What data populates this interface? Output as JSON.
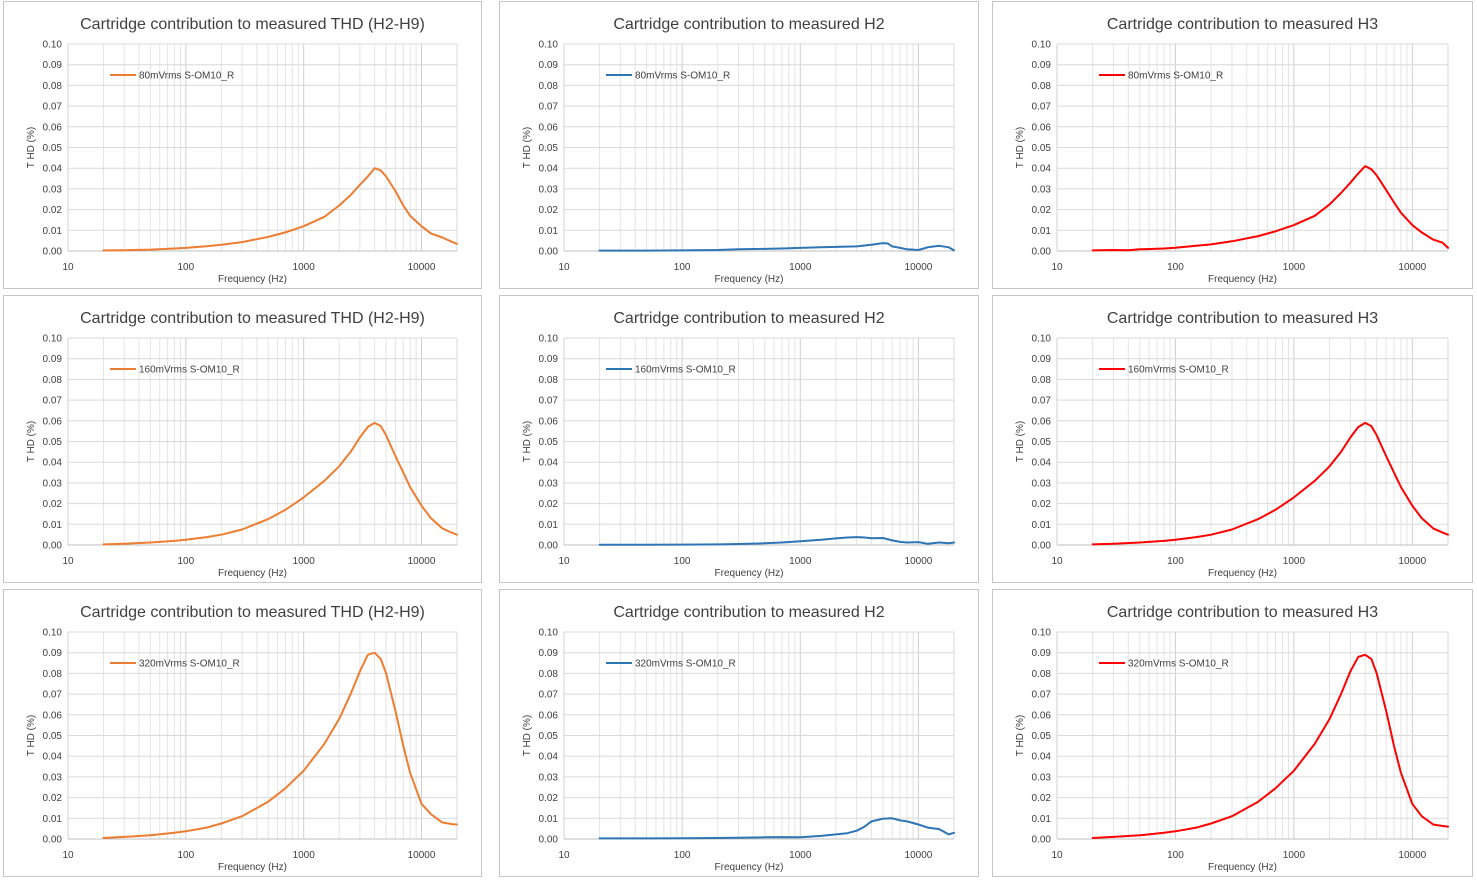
{
  "chart_data": [
    {
      "type": "line",
      "title": "Cartridge contribution to measured THD (H2-H9)",
      "xlabel": "Frequency (Hz)",
      "ylabel": "T HD (%)",
      "xscale": "log",
      "xlim": [
        10,
        20000
      ],
      "ylim": [
        0,
        0.1
      ],
      "xticks": [
        "10",
        "100",
        "1000",
        "10000"
      ],
      "yticks": [
        "0.00",
        "0.01",
        "0.02",
        "0.03",
        "0.04",
        "0.05",
        "0.06",
        "0.07",
        "0.08",
        "0.09",
        "0.10"
      ],
      "grid": true,
      "legend": "top-left",
      "series": [
        {
          "name": "80mVrms S-OM10_R",
          "color": "#ED7D31",
          "x": [
            20,
            30,
            50,
            80,
            100,
            150,
            200,
            300,
            500,
            700,
            1000,
            1500,
            2000,
            2500,
            3000,
            3500,
            4000,
            4500,
            5000,
            6000,
            7000,
            8000,
            10000,
            12000,
            15000,
            18000,
            20000
          ],
          "y": [
            0.0003,
            0.0004,
            0.0007,
            0.0012,
            0.0015,
            0.0023,
            0.003,
            0.0043,
            0.0068,
            0.009,
            0.012,
            0.0165,
            0.022,
            0.027,
            0.032,
            0.036,
            0.04,
            0.039,
            0.036,
            0.029,
            0.022,
            0.017,
            0.012,
            0.0085,
            0.0065,
            0.0045,
            0.0035
          ]
        }
      ]
    },
    {
      "type": "line",
      "title": "Cartridge contribution to measured H2",
      "xlabel": "Frequency (Hz)",
      "ylabel": "T HD (%)",
      "xscale": "log",
      "xlim": [
        10,
        20000
      ],
      "ylim": [
        0,
        0.1
      ],
      "xticks": [
        "10",
        "100",
        "1000",
        "10000"
      ],
      "yticks": [
        "0.00",
        "0.01",
        "0.02",
        "0.03",
        "0.04",
        "0.05",
        "0.06",
        "0.07",
        "0.08",
        "0.09",
        "0.10"
      ],
      "grid": true,
      "legend": "top-left",
      "series": [
        {
          "name": "80mVrms S-OM10_R",
          "color": "#2E75B6",
          "x": [
            20,
            50,
            100,
            200,
            300,
            500,
            700,
            1000,
            1500,
            2000,
            3000,
            4000,
            5000,
            5500,
            6000,
            7000,
            8000,
            10000,
            12000,
            15000,
            18000,
            20000
          ],
          "y": [
            0.0002,
            0.0002,
            0.0003,
            0.0005,
            0.0008,
            0.001,
            0.0012,
            0.0015,
            0.0018,
            0.002,
            0.0022,
            0.003,
            0.0038,
            0.0036,
            0.0022,
            0.0015,
            0.0008,
            0.0005,
            0.0018,
            0.0025,
            0.0018,
            0.0003
          ]
        }
      ]
    },
    {
      "type": "line",
      "title": "Cartridge contribution to measured H3",
      "xlabel": "Frequency (Hz)",
      "ylabel": "T HD (%)",
      "xscale": "log",
      "xlim": [
        10,
        20000
      ],
      "ylim": [
        0,
        0.1
      ],
      "xticks": [
        "10",
        "100",
        "1000",
        "10000"
      ],
      "yticks": [
        "0.00",
        "0.01",
        "0.02",
        "0.03",
        "0.04",
        "0.05",
        "0.06",
        "0.07",
        "0.08",
        "0.09",
        "0.10"
      ],
      "grid": true,
      "legend": "top-left",
      "series": [
        {
          "name": "80mVrms S-OM10_R",
          "color": "#FF0000",
          "x": [
            20,
            30,
            40,
            50,
            80,
            100,
            150,
            200,
            300,
            500,
            700,
            1000,
            1500,
            2000,
            2500,
            3000,
            3500,
            4000,
            4500,
            5000,
            6000,
            7000,
            8000,
            10000,
            12000,
            15000,
            18000,
            20000
          ],
          "y": [
            0.0003,
            0.0005,
            0.0004,
            0.0008,
            0.0012,
            0.0016,
            0.0025,
            0.0032,
            0.0047,
            0.0072,
            0.0095,
            0.0125,
            0.017,
            0.0225,
            0.028,
            0.033,
            0.0375,
            0.041,
            0.0395,
            0.0365,
            0.0295,
            0.0235,
            0.0185,
            0.0125,
            0.009,
            0.0055,
            0.004,
            0.0015
          ]
        }
      ]
    },
    {
      "type": "line",
      "title": "Cartridge contribution to measured THD (H2-H9)",
      "xlabel": "Frequency (Hz)",
      "ylabel": "T HD (%)",
      "xscale": "log",
      "xlim": [
        10,
        20000
      ],
      "ylim": [
        0,
        0.1
      ],
      "xticks": [
        "10",
        "100",
        "1000",
        "10000"
      ],
      "yticks": [
        "0.00",
        "0.01",
        "0.02",
        "0.03",
        "0.04",
        "0.05",
        "0.06",
        "0.07",
        "0.08",
        "0.09",
        "0.10"
      ],
      "grid": true,
      "legend": "top-left",
      "series": [
        {
          "name": "160mVrms S-OM10_R",
          "color": "#ED7D31",
          "x": [
            20,
            30,
            50,
            80,
            100,
            150,
            200,
            300,
            500,
            700,
            1000,
            1500,
            2000,
            2500,
            3000,
            3500,
            4000,
            4500,
            5000,
            6000,
            7000,
            8000,
            10000,
            12000,
            15000,
            18000,
            20000
          ],
          "y": [
            0.0003,
            0.0006,
            0.0012,
            0.002,
            0.0025,
            0.0038,
            0.005,
            0.0075,
            0.0125,
            0.017,
            0.023,
            0.031,
            0.038,
            0.045,
            0.052,
            0.057,
            0.059,
            0.0575,
            0.053,
            0.043,
            0.035,
            0.028,
            0.019,
            0.013,
            0.008,
            0.006,
            0.005
          ]
        }
      ]
    },
    {
      "type": "line",
      "title": "Cartridge contribution to measured H2",
      "xlabel": "Frequency (Hz)",
      "ylabel": "T HD (%)",
      "xscale": "log",
      "xlim": [
        10,
        20000
      ],
      "ylim": [
        0,
        0.1
      ],
      "xticks": [
        "10",
        "100",
        "1000",
        "10000"
      ],
      "yticks": [
        "0.00",
        "0.01",
        "0.02",
        "0.03",
        "0.04",
        "0.05",
        "0.06",
        "0.07",
        "0.08",
        "0.09",
        "0.10"
      ],
      "grid": true,
      "legend": "top-left",
      "series": [
        {
          "name": "160mVrms S-OM10_R",
          "color": "#2E75B6",
          "x": [
            20,
            50,
            100,
            200,
            300,
            500,
            700,
            1000,
            1500,
            2000,
            2500,
            3000,
            3500,
            4000,
            5000,
            6000,
            7000,
            8000,
            10000,
            12000,
            15000,
            18000,
            20000
          ],
          "y": [
            0.0001,
            0.0001,
            0.0002,
            0.0003,
            0.0005,
            0.0008,
            0.0012,
            0.0018,
            0.0025,
            0.0032,
            0.0036,
            0.0038,
            0.0036,
            0.0033,
            0.0034,
            0.0022,
            0.0015,
            0.0012,
            0.0014,
            0.0006,
            0.0012,
            0.0008,
            0.0012
          ]
        }
      ]
    },
    {
      "type": "line",
      "title": "Cartridge contribution to measured H3",
      "xlabel": "Frequency (Hz)",
      "ylabel": "T HD (%)",
      "xscale": "log",
      "xlim": [
        10,
        20000
      ],
      "ylim": [
        0,
        0.1
      ],
      "xticks": [
        "10",
        "100",
        "1000",
        "10000"
      ],
      "yticks": [
        "0.00",
        "0.01",
        "0.02",
        "0.03",
        "0.04",
        "0.05",
        "0.06",
        "0.07",
        "0.08",
        "0.09",
        "0.10"
      ],
      "grid": true,
      "legend": "top-left",
      "series": [
        {
          "name": "160mVrms S-OM10_R",
          "color": "#FF0000",
          "x": [
            20,
            30,
            50,
            80,
            100,
            150,
            200,
            300,
            500,
            700,
            1000,
            1500,
            2000,
            2500,
            3000,
            3500,
            4000,
            4500,
            5000,
            6000,
            7000,
            8000,
            10000,
            12000,
            15000,
            18000,
            20000
          ],
          "y": [
            0.0003,
            0.0006,
            0.0012,
            0.002,
            0.0025,
            0.0038,
            0.005,
            0.0075,
            0.0125,
            0.017,
            0.023,
            0.031,
            0.038,
            0.045,
            0.052,
            0.057,
            0.059,
            0.0575,
            0.053,
            0.043,
            0.035,
            0.028,
            0.019,
            0.013,
            0.008,
            0.006,
            0.005
          ]
        }
      ]
    },
    {
      "type": "line",
      "title": "Cartridge contribution to measured THD (H2-H9)",
      "xlabel": "Frequency (Hz)",
      "ylabel": "T HD (%)",
      "xscale": "log",
      "xlim": [
        10,
        20000
      ],
      "ylim": [
        0,
        0.1
      ],
      "xticks": [
        "10",
        "100",
        "1000",
        "10000"
      ],
      "yticks": [
        "0.00",
        "0.01",
        "0.02",
        "0.03",
        "0.04",
        "0.05",
        "0.06",
        "0.07",
        "0.08",
        "0.09",
        "0.10"
      ],
      "grid": true,
      "legend": "top-left",
      "series": [
        {
          "name": "320mVrms S-OM10_R",
          "color": "#ED7D31",
          "x": [
            20,
            30,
            50,
            80,
            100,
            150,
            200,
            300,
            500,
            700,
            1000,
            1500,
            2000,
            2500,
            3000,
            3500,
            4000,
            4500,
            5000,
            6000,
            7000,
            8000,
            10000,
            12000,
            15000,
            18000,
            20000
          ],
          "y": [
            0.0005,
            0.001,
            0.0018,
            0.003,
            0.0037,
            0.0055,
            0.0075,
            0.011,
            0.018,
            0.0245,
            0.033,
            0.046,
            0.058,
            0.07,
            0.081,
            0.089,
            0.09,
            0.087,
            0.08,
            0.062,
            0.045,
            0.032,
            0.017,
            0.012,
            0.008,
            0.0072,
            0.007
          ]
        }
      ]
    },
    {
      "type": "line",
      "title": "Cartridge contribution to measured H2",
      "xlabel": "Frequency (Hz)",
      "ylabel": "T HD (%)",
      "xscale": "log",
      "xlim": [
        10,
        20000
      ],
      "ylim": [
        0,
        0.1
      ],
      "xticks": [
        "10",
        "100",
        "1000",
        "10000"
      ],
      "yticks": [
        "0.00",
        "0.01",
        "0.02",
        "0.03",
        "0.04",
        "0.05",
        "0.06",
        "0.07",
        "0.08",
        "0.09",
        "0.10"
      ],
      "grid": true,
      "legend": "top-left",
      "series": [
        {
          "name": "320mVrms S-OM10_R",
          "color": "#2E75B6",
          "x": [
            20,
            50,
            100,
            200,
            300,
            500,
            700,
            1000,
            1500,
            2000,
            2500,
            3000,
            3500,
            4000,
            4500,
            5000,
            6000,
            7000,
            8000,
            10000,
            12000,
            15000,
            18000,
            20000
          ],
          "y": [
            0.0003,
            0.0003,
            0.0004,
            0.0005,
            0.0006,
            0.0008,
            0.0009,
            0.0008,
            0.0015,
            0.0022,
            0.0028,
            0.004,
            0.006,
            0.0085,
            0.0092,
            0.0098,
            0.01,
            0.009,
            0.0085,
            0.007,
            0.0055,
            0.0048,
            0.0022,
            0.003
          ]
        }
      ]
    },
    {
      "type": "line",
      "title": "Cartridge contribution to measured H3",
      "xlabel": "Frequency (Hz)",
      "ylabel": "T HD (%)",
      "xscale": "log",
      "xlim": [
        10,
        20000
      ],
      "ylim": [
        0,
        0.1
      ],
      "xticks": [
        "10",
        "100",
        "1000",
        "10000"
      ],
      "yticks": [
        "0.00",
        "0.01",
        "0.02",
        "0.03",
        "0.04",
        "0.05",
        "0.06",
        "0.07",
        "0.08",
        "0.09",
        "0.10"
      ],
      "grid": true,
      "legend": "top-left",
      "series": [
        {
          "name": "320mVrms S-OM10_R",
          "color": "#FF0000",
          "x": [
            20,
            30,
            50,
            80,
            100,
            150,
            200,
            300,
            500,
            700,
            1000,
            1500,
            2000,
            2500,
            3000,
            3500,
            4000,
            4500,
            5000,
            6000,
            7000,
            8000,
            10000,
            12000,
            15000,
            18000,
            20000
          ],
          "y": [
            0.0005,
            0.001,
            0.0018,
            0.003,
            0.0037,
            0.0055,
            0.0075,
            0.011,
            0.018,
            0.0245,
            0.033,
            0.046,
            0.058,
            0.07,
            0.081,
            0.088,
            0.089,
            0.087,
            0.08,
            0.062,
            0.045,
            0.032,
            0.017,
            0.011,
            0.007,
            0.0063,
            0.006
          ]
        }
      ]
    }
  ]
}
